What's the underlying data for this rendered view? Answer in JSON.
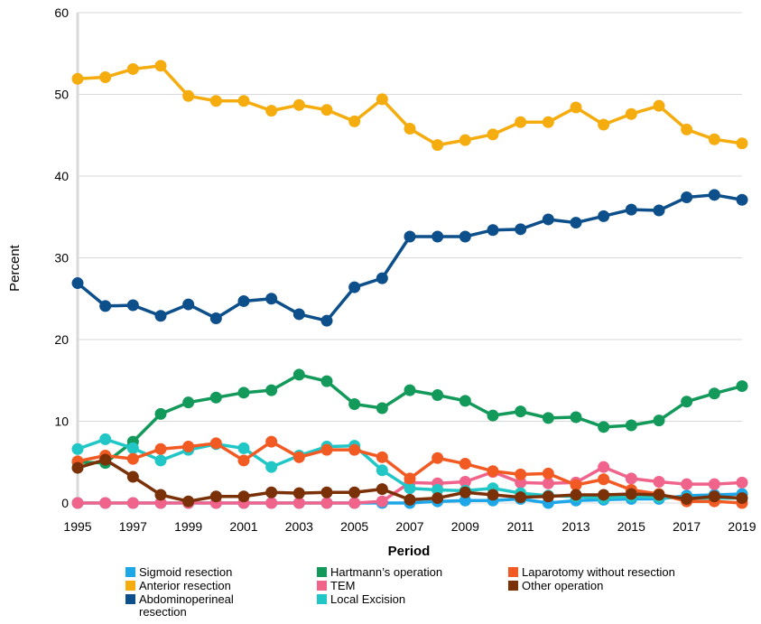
{
  "chart_data": {
    "type": "line",
    "title": "",
    "xlabel": "Period",
    "ylabel": "Percent",
    "ylim": [
      0,
      60
    ],
    "yticks": [
      "0",
      "10",
      "20",
      "30",
      "40",
      "50",
      "60"
    ],
    "xticks": [
      "1995",
      "1997",
      "1999",
      "2001",
      "2003",
      "2005",
      "2007",
      "2009",
      "2011",
      "2013",
      "2015",
      "2017",
      "2019"
    ],
    "grid": true,
    "legend_position": "bottom",
    "x": [
      1995,
      1996,
      1997,
      1998,
      1999,
      2000,
      2001,
      2002,
      2003,
      2004,
      2005,
      2006,
      2007,
      2008,
      2009,
      2010,
      2011,
      2012,
      2013,
      2014,
      2015,
      2016,
      2017,
      2018,
      2019
    ],
    "series": [
      {
        "name": "Sigmoid resection",
        "color": "#1ea7e8",
        "values": [
          0,
          0,
          0,
          0,
          0,
          0,
          0,
          0,
          0,
          0,
          0,
          0,
          0,
          0.2,
          0.3,
          0.3,
          0.5,
          0,
          0.3,
          0.4,
          0.5,
          0.5,
          0.9,
          1.0,
          1.1
        ]
      },
      {
        "name": "Anterior resection",
        "color": "#f5ac0f",
        "values": [
          51.9,
          52.1,
          53.1,
          53.5,
          49.8,
          49.2,
          49.2,
          48.0,
          48.7,
          48.1,
          46.7,
          49.4,
          45.8,
          43.8,
          44.4,
          45.1,
          46.6,
          46.6,
          48.4,
          46.3,
          47.6,
          48.6,
          45.7,
          44.5,
          44.0
        ]
      },
      {
        "name": "Abdominoperineal resection",
        "color": "#0d4f8b",
        "values": [
          26.9,
          24.1,
          24.2,
          22.9,
          24.3,
          22.6,
          24.7,
          25.0,
          23.1,
          22.3,
          26.4,
          27.5,
          32.6,
          32.6,
          32.6,
          33.4,
          33.5,
          34.7,
          34.3,
          35.1,
          35.9,
          35.8,
          37.4,
          37.7,
          37.1
        ]
      },
      {
        "name": "Hartmann's operation",
        "color": "#139a5b",
        "values": [
          5.0,
          4.9,
          7.5,
          10.9,
          12.3,
          12.9,
          13.5,
          13.8,
          15.7,
          14.9,
          12.1,
          11.6,
          13.8,
          13.2,
          12.5,
          10.7,
          11.2,
          10.4,
          10.5,
          9.3,
          9.5,
          10.1,
          12.4,
          13.4,
          14.3
        ]
      },
      {
        "name": "TEM",
        "color": "#f0648c",
        "values": [
          0,
          0,
          0,
          0,
          0,
          0,
          0,
          0,
          0,
          0,
          0,
          0.2,
          2.5,
          2.4,
          2.6,
          3.8,
          2.5,
          2.4,
          2.5,
          4.4,
          3.0,
          2.6,
          2.3,
          2.3,
          2.5
        ]
      },
      {
        "name": "Local Excision",
        "color": "#21c6c6",
        "values": [
          6.6,
          7.8,
          6.7,
          5.2,
          6.5,
          7.2,
          6.7,
          4.4,
          5.8,
          6.9,
          7.0,
          4.0,
          1.8,
          1.6,
          1.5,
          1.8,
          1.2,
          0.9,
          0.8,
          0.6,
          0.8,
          0.7,
          0.6,
          0.6,
          0.6
        ]
      },
      {
        "name": "Laparotomy without resection",
        "color": "#f25a23",
        "values": [
          5.1,
          5.8,
          5.4,
          6.6,
          6.9,
          7.3,
          5.2,
          7.5,
          5.6,
          6.5,
          6.5,
          5.6,
          3.0,
          5.5,
          4.8,
          3.9,
          3.5,
          3.6,
          2.2,
          2.9,
          1.6,
          1.1,
          0.2,
          0.2,
          0.0
        ]
      },
      {
        "name": "Other operation",
        "color": "#7b3108",
        "values": [
          4.3,
          5.3,
          3.2,
          1.0,
          0.2,
          0.8,
          0.8,
          1.3,
          1.2,
          1.3,
          1.3,
          1.7,
          0.4,
          0.6,
          1.3,
          1.0,
          0.7,
          0.8,
          1.0,
          1.0,
          1.1,
          1.0,
          0.5,
          0.8,
          0.6
        ]
      }
    ]
  },
  "legend": [
    {
      "label": "Sigmoid resection",
      "color": "#1ea7e8"
    },
    {
      "label": "Hartmann’s operation",
      "color": "#139a5b"
    },
    {
      "label": "Laparotomy without resection",
      "color": "#f25a23"
    },
    {
      "label": "Anterior resection",
      "color": "#f5ac0f"
    },
    {
      "label": "TEM",
      "color": "#f0648c"
    },
    {
      "label": "Other operation",
      "color": "#7b3108"
    },
    {
      "label": "Abdominoperineal resection",
      "color": "#0d4f8b"
    },
    {
      "label": "Local Excision",
      "color": "#21c6c6"
    }
  ],
  "colors": {
    "grid": "#d9d9d9",
    "axis": "#d9d9d9"
  }
}
